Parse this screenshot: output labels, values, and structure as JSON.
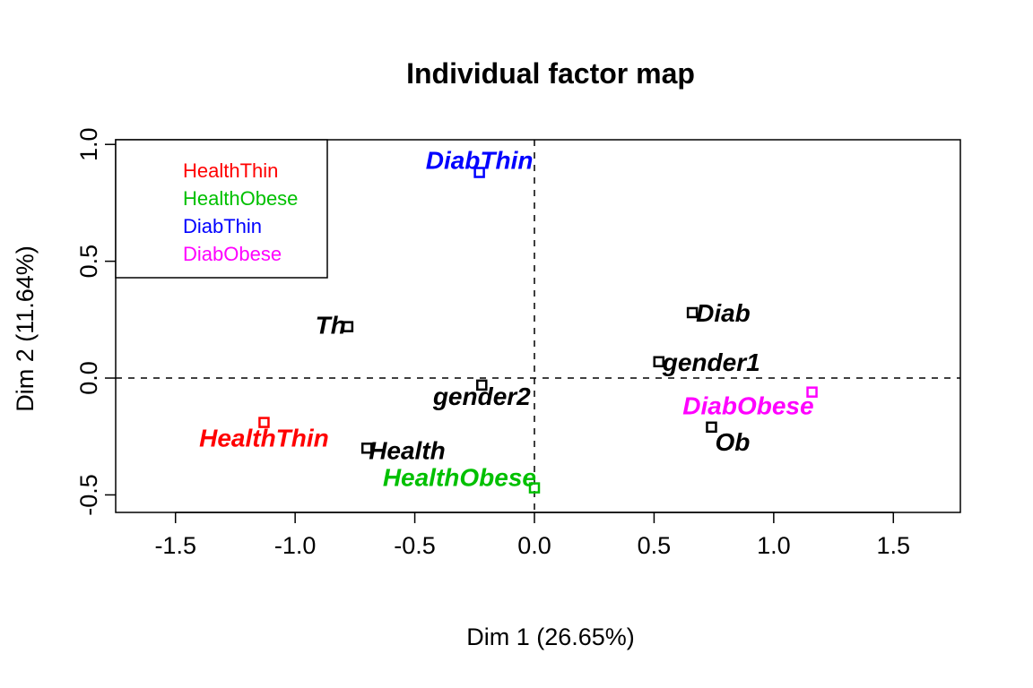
{
  "chart_data": {
    "type": "scatter",
    "title": "Individual factor map",
    "xlabel": "Dim 1 (26.65%)",
    "ylabel": "Dim 2 (11.64%)",
    "xlim": [
      -1.75,
      1.78
    ],
    "ylim": [
      -0.575,
      1.02
    ],
    "x_ticks": [
      -1.5,
      -1.0,
      -0.5,
      0.0,
      0.5,
      1.0,
      1.5
    ],
    "x_tick_labels": [
      "-1.5",
      "-1.0",
      "-0.5",
      "0.0",
      "0.5",
      "1.0",
      "1.5"
    ],
    "y_ticks": [
      -0.5,
      0.0,
      0.5,
      1.0
    ],
    "y_tick_labels": [
      "-0.5",
      "0.0",
      "0.5",
      "1.0"
    ],
    "reference_lines": {
      "x": 0,
      "y": 0,
      "style": "dashed"
    },
    "legend": {
      "position": "top-left",
      "entries": [
        {
          "label": "HealthThin",
          "color": "#ff0000"
        },
        {
          "label": "HealthObese",
          "color": "#00c000"
        },
        {
          "label": "DiabThin",
          "color": "#0000ff"
        },
        {
          "label": "DiabObese",
          "color": "#ff00ff"
        }
      ]
    },
    "points": [
      {
        "label": "DiabThin",
        "x": -0.23,
        "y": 0.88,
        "color": "#0000ff",
        "anchor": "middle",
        "dx": 0,
        "dy": -4
      },
      {
        "label": "Th",
        "x": -0.78,
        "y": 0.22,
        "color": "#000000",
        "anchor": "end",
        "dx": -2,
        "dy": 8
      },
      {
        "label": "Diab",
        "x": 0.66,
        "y": 0.28,
        "color": "#000000",
        "anchor": "start",
        "dx": 4,
        "dy": 10
      },
      {
        "label": "gender1",
        "x": 0.52,
        "y": 0.07,
        "color": "#000000",
        "anchor": "start",
        "dx": 4,
        "dy": 10
      },
      {
        "label": "gender2",
        "x": -0.22,
        "y": -0.03,
        "color": "#000000",
        "anchor": "middle",
        "dx": 0,
        "dy": 22
      },
      {
        "label": "DiabObese",
        "x": 1.16,
        "y": -0.06,
        "color": "#ff00ff",
        "anchor": "end",
        "dx": 2,
        "dy": 25
      },
      {
        "label": "Ob",
        "x": 0.74,
        "y": -0.21,
        "color": "#000000",
        "anchor": "start",
        "dx": 4,
        "dy": 26
      },
      {
        "label": "HealthThin",
        "x": -1.13,
        "y": -0.19,
        "color": "#ff0000",
        "anchor": "middle",
        "dx": 0,
        "dy": 27
      },
      {
        "label": "Health",
        "x": -0.7,
        "y": -0.3,
        "color": "#000000",
        "anchor": "start",
        "dx": 2,
        "dy": 12
      },
      {
        "label": "HealthObese",
        "x": 0.0,
        "y": -0.47,
        "color": "#00c000",
        "anchor": "end",
        "dx": 2,
        "dy": -2
      }
    ]
  }
}
